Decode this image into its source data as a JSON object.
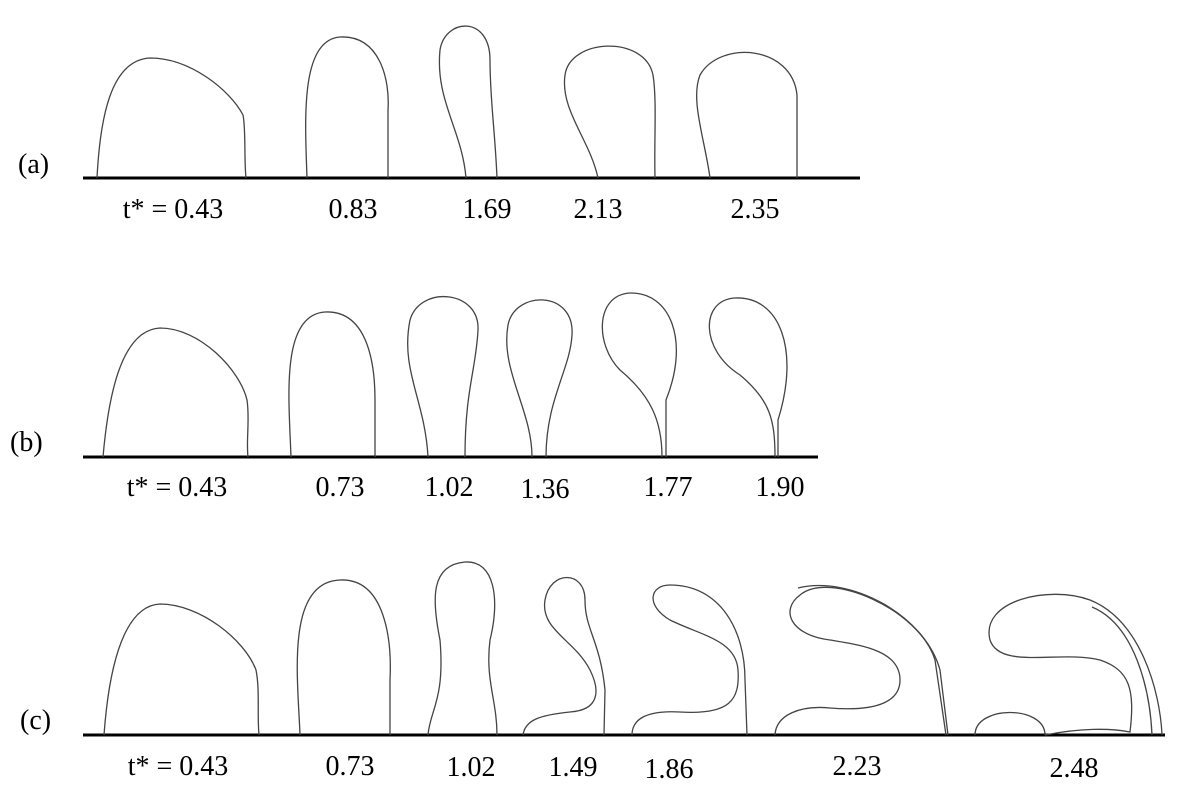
{
  "panels": [
    {
      "label": "(a)",
      "times": [
        "t* = 0.43",
        "0.83",
        "1.69",
        "2.13",
        "2.35"
      ]
    },
    {
      "label": "(b)",
      "times": [
        "t* = 0.43",
        "0.73",
        "1.02",
        "1.36",
        "1.77",
        "1.90"
      ]
    },
    {
      "label": "(c)",
      "times": [
        "t* = 0.43",
        "0.73",
        "1.02",
        "1.49",
        "1.86",
        "2.23",
        "2.48"
      ]
    }
  ]
}
